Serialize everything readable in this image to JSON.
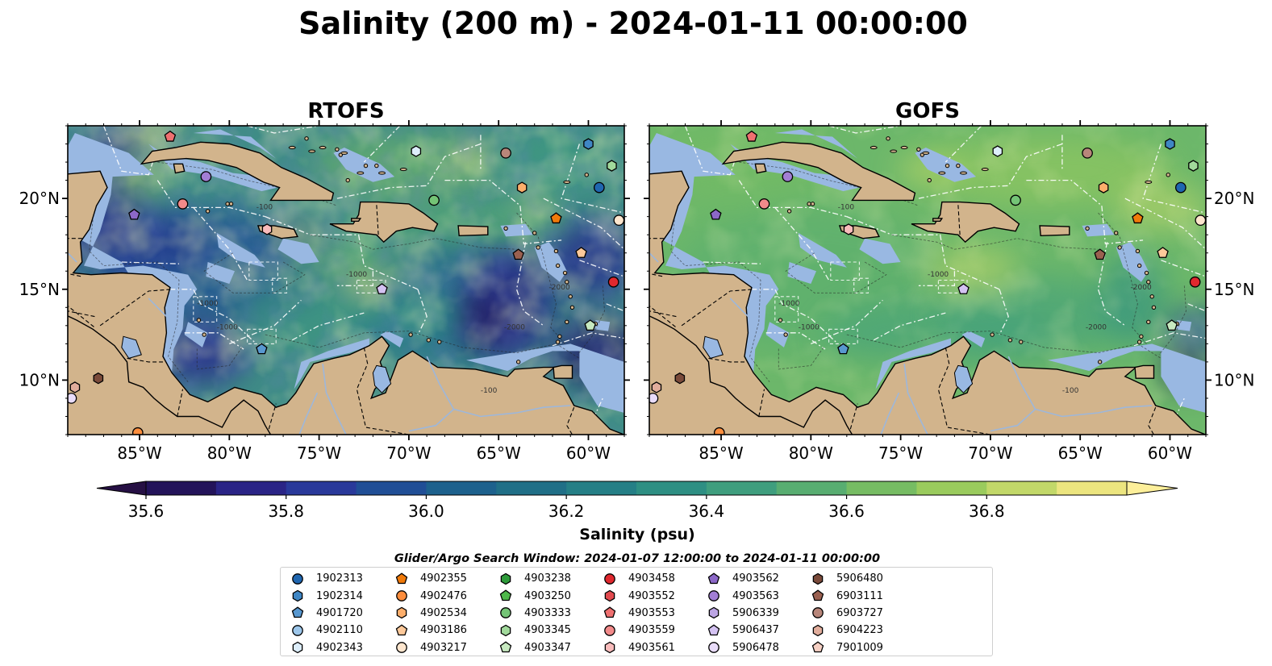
{
  "title": "Salinity (200 m) - 2024-01-11 00:00:00",
  "panels": [
    {
      "title": "RTOFS",
      "ticks_side": "left"
    },
    {
      "title": "GOFS",
      "ticks_side": "right"
    }
  ],
  "map_extent": {
    "lon_min": -89,
    "lon_max": -58,
    "lat_min": 7,
    "lat_max": 24
  },
  "lon_ticks": [
    {
      "value": -85,
      "label": "85°W"
    },
    {
      "value": -80,
      "label": "80°W"
    },
    {
      "value": -75,
      "label": "75°W"
    },
    {
      "value": -70,
      "label": "70°W"
    },
    {
      "value": -65,
      "label": "65°W"
    },
    {
      "value": -60,
      "label": "60°W"
    }
  ],
  "lat_ticks": [
    {
      "value": 20,
      "label": "20°N"
    },
    {
      "value": 15,
      "label": "15°N"
    },
    {
      "value": 10,
      "label": "10°N"
    }
  ],
  "contour_labels": [
    "-1000",
    "-100",
    "-2000"
  ],
  "colorbar": {
    "label": "Salinity (psu)",
    "min": 35.6,
    "max": 36.9,
    "step": 0.1,
    "ticks": [
      {
        "value": 35.6,
        "label": "35.6"
      },
      {
        "value": 35.8,
        "label": "35.8"
      },
      {
        "value": 36.0,
        "label": "36.0"
      },
      {
        "value": 36.2,
        "label": "36.2"
      },
      {
        "value": 36.4,
        "label": "36.4"
      },
      {
        "value": 36.6,
        "label": "36.6"
      },
      {
        "value": 36.8,
        "label": "36.8"
      }
    ],
    "colors": [
      "#23135a",
      "#2a2486",
      "#29399a",
      "#204e96",
      "#1d618d",
      "#206f87",
      "#257f86",
      "#2e8f83",
      "#3f9e7e",
      "#58ad71",
      "#76bc63",
      "#9acb5d",
      "#c2d869",
      "#ece57f"
    ],
    "extend_low_color": "#261044",
    "extend_high_color": "#fdef9a"
  },
  "colors": {
    "land": "#d2b48c",
    "shelf": "#99b8e2",
    "deep_pacific": "#271a5c",
    "rtofs_sea": "#3f8c86",
    "gofs_sea": "#6cb76a"
  },
  "search_window": "Glider/Argo Search Window: 2024-01-07 12:00:00 to 2024-01-11 00:00:00",
  "floats": [
    {
      "id": "1902313",
      "color": "#1f66b0",
      "marker": "circle"
    },
    {
      "id": "1902314",
      "color": "#3f86c4",
      "marker": "hexagon"
    },
    {
      "id": "4901720",
      "color": "#5898d0",
      "marker": "pentagon"
    },
    {
      "id": "4902110",
      "color": "#9cc6ea",
      "marker": "circle"
    },
    {
      "id": "4902343",
      "color": "#ddeefb",
      "marker": "hexagon"
    },
    {
      "id": "4902355",
      "color": "#f07a0a",
      "marker": "pentagon"
    },
    {
      "id": "4902476",
      "color": "#fd8d3c",
      "marker": "circle"
    },
    {
      "id": "4902534",
      "color": "#fdae6b",
      "marker": "hexagon"
    },
    {
      "id": "4903186",
      "color": "#fdc99a",
      "marker": "pentagon"
    },
    {
      "id": "4903217",
      "color": "#fee6ce",
      "marker": "circle"
    },
    {
      "id": "4903238",
      "color": "#2e9b3a",
      "marker": "hexagon"
    },
    {
      "id": "4903250",
      "color": "#4fb84b",
      "marker": "pentagon"
    },
    {
      "id": "4903333",
      "color": "#74c476",
      "marker": "circle"
    },
    {
      "id": "4903345",
      "color": "#a1d99b",
      "marker": "hexagon"
    },
    {
      "id": "4903347",
      "color": "#c7e9c0",
      "marker": "pentagon"
    },
    {
      "id": "4903458",
      "color": "#e0282e",
      "marker": "circle"
    },
    {
      "id": "4903552",
      "color": "#e24a4f",
      "marker": "hexagon"
    },
    {
      "id": "4903553",
      "color": "#ef7070",
      "marker": "pentagon"
    },
    {
      "id": "4903559",
      "color": "#f28a8a",
      "marker": "circle"
    },
    {
      "id": "4903561",
      "color": "#f9bcbc",
      "marker": "hexagon"
    },
    {
      "id": "4903562",
      "color": "#8c68c8",
      "marker": "pentagon"
    },
    {
      "id": "4903563",
      "color": "#a27ed4",
      "marker": "circle"
    },
    {
      "id": "5906339",
      "color": "#bca5e4",
      "marker": "hexagon"
    },
    {
      "id": "5906437",
      "color": "#d4c2f2",
      "marker": "pentagon"
    },
    {
      "id": "5906478",
      "color": "#e9dcfa",
      "marker": "circle"
    },
    {
      "id": "5906480",
      "color": "#7a4a3a",
      "marker": "hexagon"
    },
    {
      "id": "6903111",
      "color": "#9a6050",
      "marker": "pentagon"
    },
    {
      "id": "6903727",
      "color": "#b8867a",
      "marker": "circle"
    },
    {
      "id": "6904223",
      "color": "#e1ad9c",
      "marker": "hexagon"
    },
    {
      "id": "7901009",
      "color": "#f6d0c4",
      "marker": "pentagon"
    }
  ],
  "float_positions": [
    {
      "id": "4903553",
      "lon": -83.3,
      "lat": 23.4
    },
    {
      "id": "4903563",
      "lon": -81.3,
      "lat": 21.2
    },
    {
      "id": "4903559",
      "lon": -82.6,
      "lat": 19.7
    },
    {
      "id": "4903562",
      "lon": -85.3,
      "lat": 19.1
    },
    {
      "id": "4903561",
      "lon": -77.9,
      "lat": 18.3
    },
    {
      "id": "4902343",
      "lon": -69.6,
      "lat": 22.6
    },
    {
      "id": "4903333",
      "lon": -68.6,
      "lat": 19.9
    },
    {
      "id": "6903727",
      "lon": -64.6,
      "lat": 22.5
    },
    {
      "id": "4902534",
      "lon": -63.7,
      "lat": 20.6
    },
    {
      "id": "1902314",
      "lon": -60.0,
      "lat": 23.0
    },
    {
      "id": "4903345",
      "lon": -58.7,
      "lat": 21.8
    },
    {
      "id": "1902313",
      "lon": -59.4,
      "lat": 20.6
    },
    {
      "id": "4903217",
      "lon": -58.3,
      "lat": 18.8
    },
    {
      "id": "4902355",
      "lon": -61.8,
      "lat": 18.9
    },
    {
      "id": "4903186",
      "lon": -60.4,
      "lat": 17.0
    },
    {
      "id": "6903111",
      "lon": -63.9,
      "lat": 16.9
    },
    {
      "id": "5906437",
      "lon": -71.5,
      "lat": 15.0
    },
    {
      "id": "4903458",
      "lon": -58.6,
      "lat": 15.4
    },
    {
      "id": "4903347",
      "lon": -59.9,
      "lat": 13.0
    },
    {
      "id": "4901720",
      "lon": -78.2,
      "lat": 11.7
    },
    {
      "id": "5906480",
      "lon": -87.3,
      "lat": 10.1
    },
    {
      "id": "6904223",
      "lon": -88.6,
      "lat": 9.6
    },
    {
      "id": "5906478",
      "lon": -88.8,
      "lat": 9.0
    },
    {
      "id": "4902476",
      "lon": -85.1,
      "lat": 7.1
    }
  ]
}
